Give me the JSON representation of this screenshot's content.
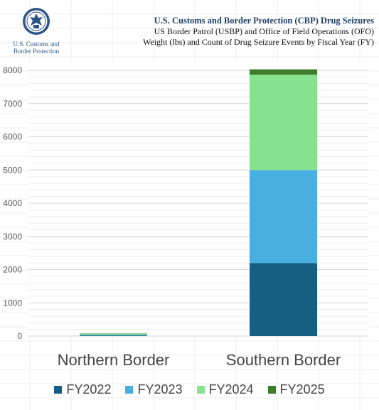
{
  "logo": {
    "line1": "U.S. Customs and",
    "line2": "Border Protection"
  },
  "titles": {
    "main": "U.S. Customs and Border Protection (CBP) Drug Seizures",
    "sub1": "US Border Patrol (USBP) and Office of Field Operations (OFO)",
    "sub2": "Weight (lbs) and Count of Drug Seizure Events by Fiscal Year (FY)"
  },
  "chart_data": {
    "type": "bar",
    "stacked": true,
    "title": "",
    "xlabel": "",
    "ylabel": "",
    "categories": [
      "Northern Border",
      "Southern Border"
    ],
    "series": [
      {
        "name": "FY2022",
        "color": "#155f82",
        "values": [
          20,
          2200
        ]
      },
      {
        "name": "FY2023",
        "color": "#47b0e0",
        "values": [
          20,
          2800
        ]
      },
      {
        "name": "FY2024",
        "color": "#87e28f",
        "values": [
          30,
          2870
        ]
      },
      {
        "name": "FY2025",
        "color": "#3e7e2b",
        "values": [
          10,
          160
        ]
      }
    ],
    "ylim": [
      0,
      8000
    ],
    "yticks": [
      0,
      1000,
      2000,
      3000,
      4000,
      5000,
      6000,
      7000,
      8000
    ],
    "grid": true,
    "legend_position": "bottom"
  }
}
